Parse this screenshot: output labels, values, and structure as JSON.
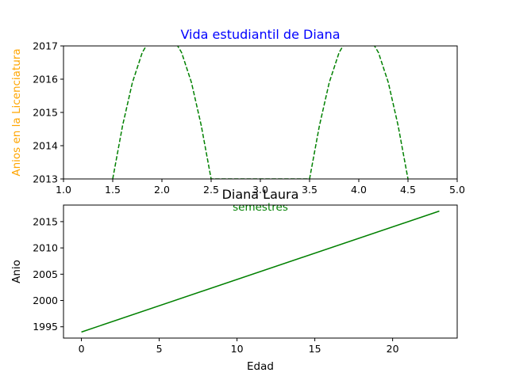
{
  "chart_data": [
    {
      "type": "line",
      "title": "Vida estudiantil de Diana",
      "title_color": "#0000ff",
      "xlabel": "semestres",
      "xlabel_color": "#008000",
      "ylabel": "Anios en la Licenciatura",
      "ylabel_color": "#ffa500",
      "xlim": [
        1.0,
        5.0
      ],
      "ylim": [
        2013,
        2017
      ],
      "xticks": [
        "1.0",
        "1.5",
        "2.0",
        "2.5",
        "3.0",
        "3.5",
        "4.0",
        "4.5",
        "5.0"
      ],
      "yticks": [
        "2013",
        "2014",
        "2015",
        "2016",
        "2017"
      ],
      "series": [
        {
          "color": "#008000",
          "style": "dashed",
          "x": [
            1.5,
            1.6,
            1.7,
            1.8,
            1.85,
            2.15,
            2.2,
            2.3,
            2.4,
            2.5,
            3.5,
            3.6,
            3.7,
            3.8,
            3.85,
            4.15,
            4.2,
            4.3,
            4.4,
            4.5
          ],
          "y": [
            2013.0,
            2014.6,
            2015.9,
            2016.8,
            2017.05,
            2017.05,
            2016.8,
            2015.9,
            2014.6,
            2013.0,
            2013.0,
            2014.6,
            2015.9,
            2016.8,
            2017.05,
            2017.05,
            2016.8,
            2015.9,
            2014.6,
            2013.0
          ]
        }
      ]
    },
    {
      "type": "line",
      "title": "Diana Laura",
      "title_color": "#000000",
      "xlabel": "Edad",
      "ylabel": "Anio",
      "xlim": [
        -1.15,
        24.15
      ],
      "ylim": [
        1992.85,
        2018.15
      ],
      "xticks": [
        0,
        5,
        10,
        15,
        20
      ],
      "yticks": [
        1995,
        2000,
        2005,
        2010,
        2015
      ],
      "series": [
        {
          "color": "#008000",
          "style": "solid",
          "x": [
            0,
            23
          ],
          "y": [
            1994,
            2017
          ]
        }
      ]
    }
  ]
}
